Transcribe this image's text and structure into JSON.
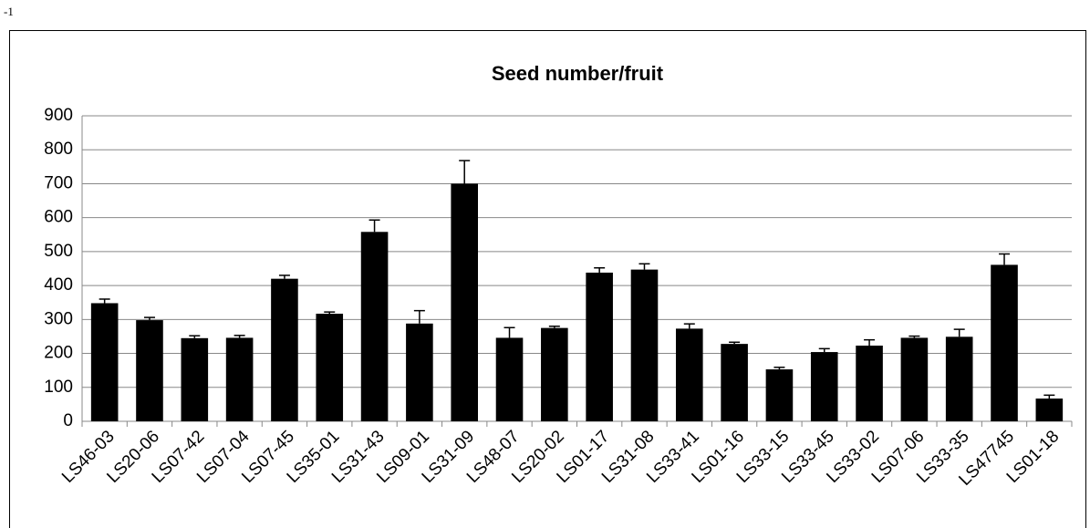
{
  "note": "-1",
  "chart_data": {
    "type": "bar",
    "title": "Seed number/fruit",
    "categories": [
      "LS46-03",
      "LS20-06",
      "LS07-42",
      "LS07-04",
      "LS07-45",
      "LS35-01",
      "LS31-43",
      "LS09-01",
      "LS31-09",
      "LS48-07",
      "LS20-02",
      "LS01-17",
      "LS31-08",
      "LS33-41",
      "LS01-16",
      "LS33-15",
      "LS33-45",
      "LS33-02",
      "LS07-06",
      "LS33-35",
      "LS47745",
      "LS01-18"
    ],
    "values": [
      348,
      298,
      245,
      246,
      420,
      317,
      558,
      288,
      700,
      246,
      275,
      438,
      447,
      273,
      228,
      153,
      204,
      223,
      246,
      249,
      461,
      67
    ],
    "errors": [
      12,
      8,
      7,
      7,
      10,
      5,
      35,
      38,
      68,
      30,
      5,
      14,
      17,
      14,
      5,
      6,
      10,
      17,
      5,
      22,
      32,
      10
    ],
    "color": "#000000",
    "ylim": [
      0,
      900
    ],
    "yticks": [
      0,
      100,
      200,
      300,
      400,
      500,
      600,
      700,
      800,
      900
    ],
    "grid": true
  }
}
